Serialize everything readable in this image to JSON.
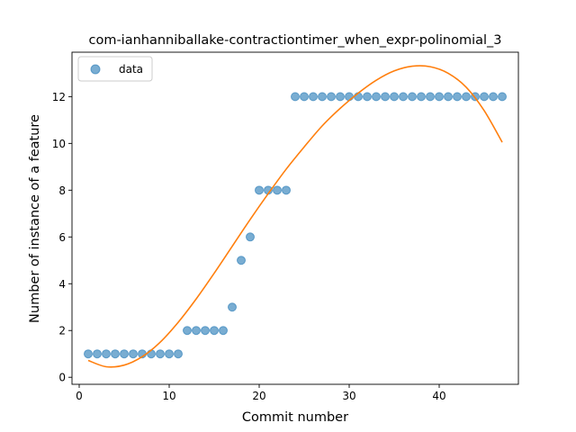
{
  "chart_data": {
    "type": "scatter",
    "title": "com-ianhanniballake-contractiontimer_when_expr-polinomial_3",
    "xlabel": "Commit number",
    "ylabel": "Number of instance of a feature",
    "xlim": [
      -0.8,
      48.8
    ],
    "ylim": [
      -0.3,
      13.9
    ],
    "xticks": [
      0,
      10,
      20,
      30,
      40
    ],
    "yticks": [
      0,
      2,
      4,
      6,
      8,
      10,
      12
    ],
    "grid": false,
    "legend": {
      "placement": "top-left",
      "entries": [
        "data"
      ]
    },
    "series": [
      {
        "name": "data",
        "kind": "scatter",
        "color": "#1f77b4",
        "x": [
          1,
          2,
          3,
          4,
          5,
          6,
          7,
          8,
          9,
          10,
          11,
          12,
          13,
          14,
          15,
          16,
          17,
          18,
          19,
          20,
          21,
          22,
          23,
          24,
          25,
          26,
          27,
          28,
          29,
          30,
          31,
          32,
          33,
          34,
          35,
          36,
          37,
          38,
          39,
          40,
          41,
          42,
          43,
          44,
          45,
          46,
          47
        ],
        "y": [
          1,
          1,
          1,
          1,
          1,
          1,
          1,
          1,
          1,
          1,
          1,
          2,
          2,
          2,
          2,
          2,
          3,
          5,
          6,
          8,
          8,
          8,
          8,
          12,
          12,
          12,
          12,
          12,
          12,
          12,
          12,
          12,
          12,
          12,
          12,
          12,
          12,
          12,
          12,
          12,
          12,
          12,
          12,
          12,
          12,
          12,
          12
        ]
      },
      {
        "kind": "line",
        "color": "#ff7f0e",
        "x": [
          1,
          3,
          5,
          7,
          9,
          11,
          13,
          15,
          17,
          19,
          21,
          23,
          25,
          27,
          29,
          31,
          33,
          35,
          37,
          39,
          41,
          43,
          45,
          47
        ],
        "y": [
          0.72,
          0.45,
          0.52,
          0.88,
          1.5,
          2.35,
          3.35,
          4.45,
          5.6,
          6.75,
          7.85,
          8.9,
          9.85,
          10.75,
          11.5,
          12.15,
          12.7,
          13.1,
          13.3,
          13.28,
          13.0,
          12.4,
          11.4,
          10.05
        ]
      }
    ]
  }
}
